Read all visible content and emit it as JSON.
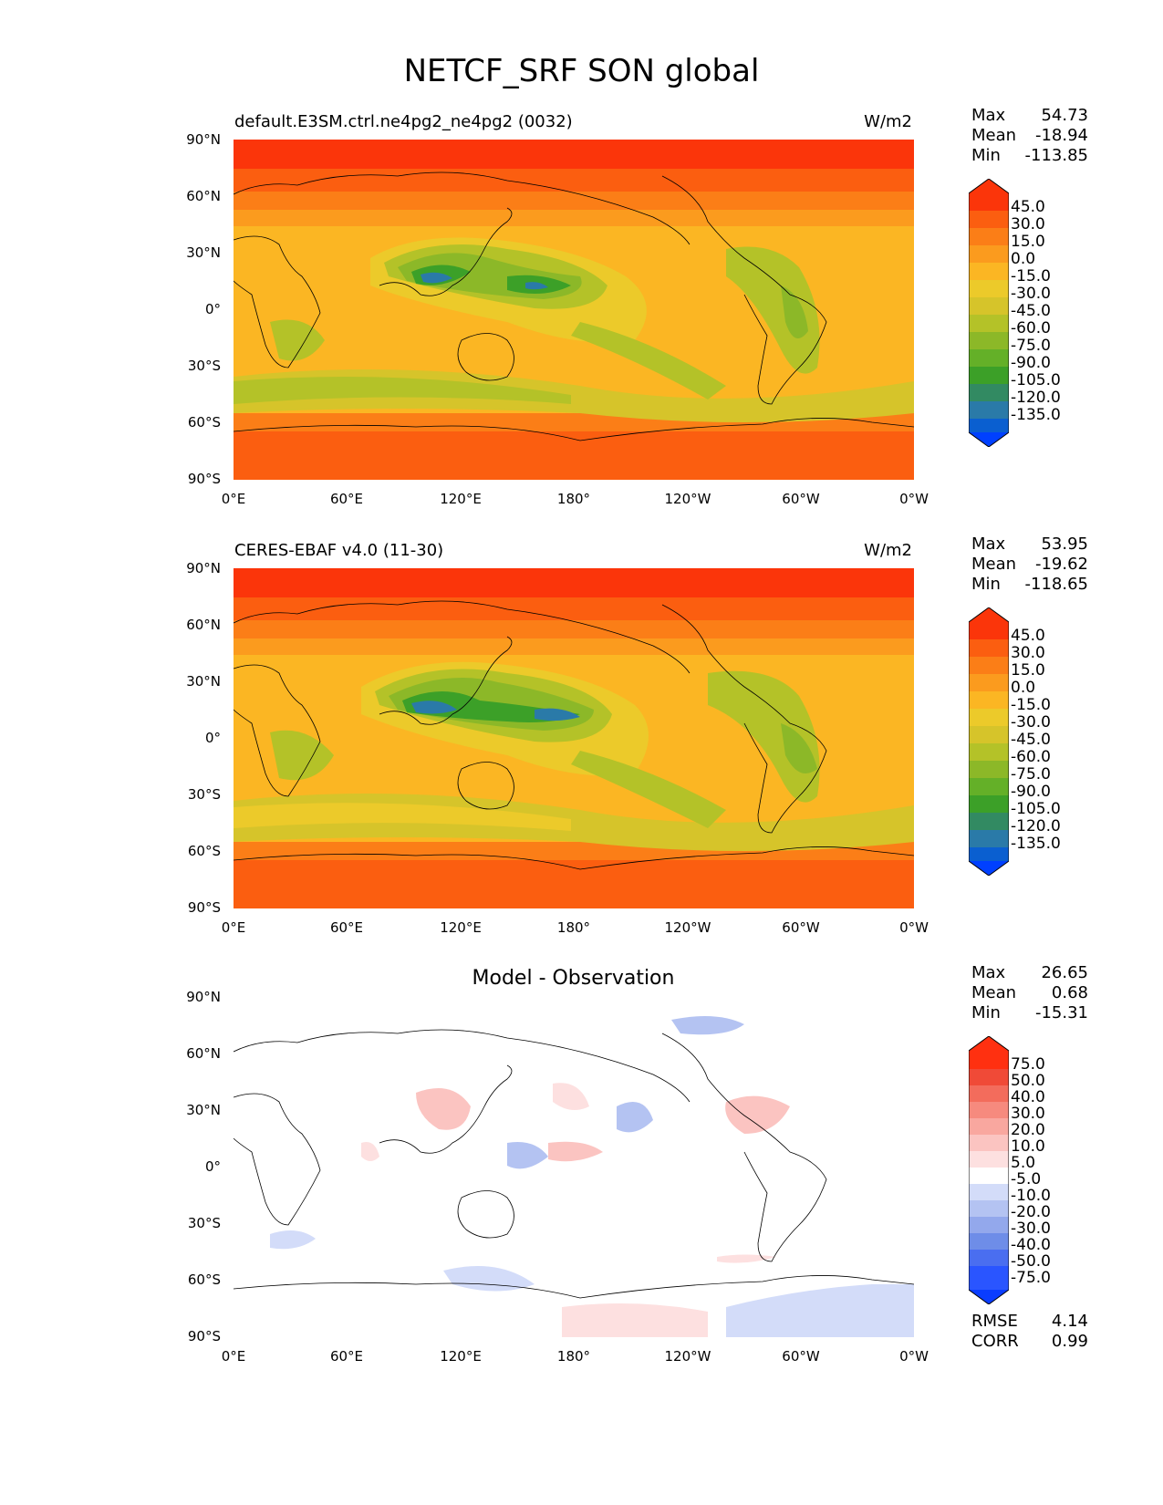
{
  "figure_title": "NETCF_SRF SON global",
  "units": "W/m2",
  "lat_labels": [
    "90°N",
    "60°N",
    "30°N",
    "0°",
    "30°S",
    "60°S",
    "90°S"
  ],
  "lon_labels": [
    "0°E",
    "60°E",
    "120°E",
    "180°",
    "120°W",
    "60°W",
    "0°W"
  ],
  "colors": {
    "field": [
      "#0040ff",
      "#0a5fd0",
      "#2a7aa8",
      "#328a62",
      "#3ca028",
      "#64b028",
      "#8cb828",
      "#b4c228",
      "#d6c42a",
      "#ecca2a",
      "#fbb623",
      "#fb9b1e",
      "#fb7e17",
      "#fb5e10",
      "#fb350a"
    ],
    "diff": [
      "#0a3dff",
      "#2a55ff",
      "#4a6ef0",
      "#6e8de8",
      "#93a8ec",
      "#b4c3f2",
      "#d3dcf9",
      "#ffffff",
      "#fde0e0",
      "#fbc4c1",
      "#f9a79f",
      "#f68a7e",
      "#f36c5c",
      "#f04a37",
      "#ff3010"
    ],
    "coast": "#000000"
  },
  "panels": [
    {
      "title": "default.E3SM.ctrl.ne4pg2_ne4pg2 (0032)",
      "units": "W/m2",
      "stats": {
        "max_label": "Max",
        "max": "54.73",
        "mean_label": "Mean",
        "mean": "-18.94",
        "min_label": "Min",
        "min": "-113.85"
      },
      "colorbar_ticks": [
        "45.0",
        "30.0",
        "15.0",
        "0.0",
        "-15.0",
        "-30.0",
        "-45.0",
        "-60.0",
        "-75.0",
        "-90.0",
        "-105.0",
        "-120.0",
        "-135.0"
      ],
      "kind": "field"
    },
    {
      "title": "CERES-EBAF v4.0 (11-30)",
      "units": "W/m2",
      "stats": {
        "max_label": "Max",
        "max": "53.95",
        "mean_label": "Mean",
        "mean": "-19.62",
        "min_label": "Min",
        "min": "-118.65"
      },
      "colorbar_ticks": [
        "45.0",
        "30.0",
        "15.0",
        "0.0",
        "-15.0",
        "-30.0",
        "-45.0",
        "-60.0",
        "-75.0",
        "-90.0",
        "-105.0",
        "-120.0",
        "-135.0"
      ],
      "kind": "field"
    },
    {
      "title": "Model - Observation",
      "stats": {
        "max_label": "Max",
        "max": "26.65",
        "mean_label": "Mean",
        "mean": "0.68",
        "min_label": "Min",
        "min": "-15.31"
      },
      "colorbar_ticks": [
        "75.0",
        "50.0",
        "40.0",
        "30.0",
        "20.0",
        "10.0",
        "5.0",
        "-5.0",
        "-10.0",
        "-20.0",
        "-30.0",
        "-40.0",
        "-50.0",
        "-75.0"
      ],
      "kind": "diff",
      "extra": {
        "rmse_label": "RMSE",
        "rmse": "4.14",
        "corr_label": "CORR",
        "corr": "0.99"
      }
    }
  ]
}
